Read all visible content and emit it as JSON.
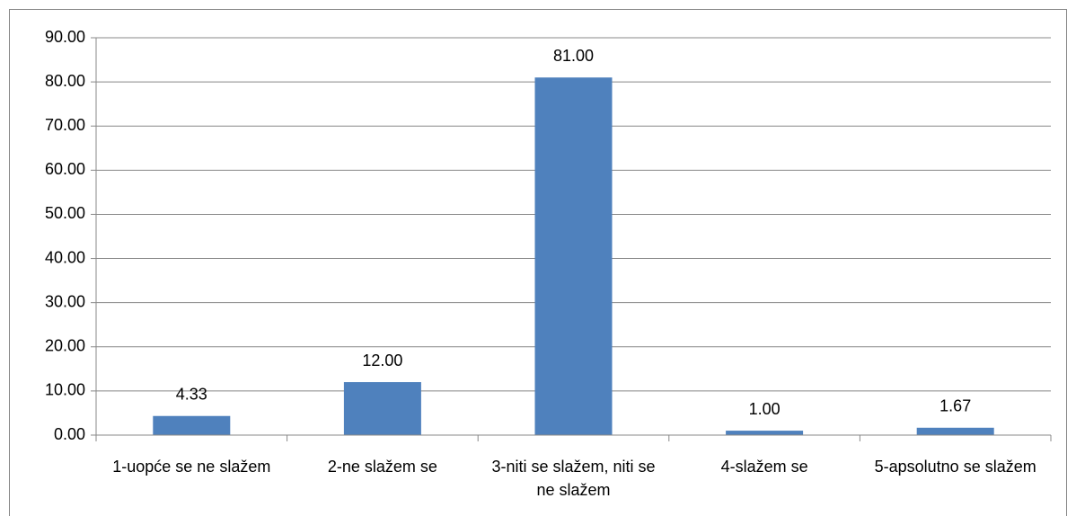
{
  "chart_data": {
    "type": "bar",
    "categories": [
      "1-uopće se ne slažem",
      "2-ne slažem se",
      "3-niti se slažem, niti se ne slažem",
      "4-slažem se",
      "5-apsolutno se slažem"
    ],
    "values": [
      4.33,
      12,
      81,
      1,
      1.67
    ],
    "value_labels": [
      "4.33",
      "12.00",
      "81.00",
      "1.00",
      "1.67"
    ],
    "color": "#4f81bd",
    "ylim": [
      0,
      90
    ],
    "yticks": [
      {
        "value": 0,
        "label": "0.00"
      },
      {
        "value": 10,
        "label": "10.00"
      },
      {
        "value": 20,
        "label": "20.00"
      },
      {
        "value": 30,
        "label": "30.00"
      },
      {
        "value": 40,
        "label": "40.00"
      },
      {
        "value": 50,
        "label": "50.00"
      },
      {
        "value": 60,
        "label": "60.00"
      },
      {
        "value": 70,
        "label": "70.00"
      },
      {
        "value": 80,
        "label": "80.00"
      },
      {
        "value": 90,
        "label": "90.00"
      }
    ],
    "grid": true
  }
}
